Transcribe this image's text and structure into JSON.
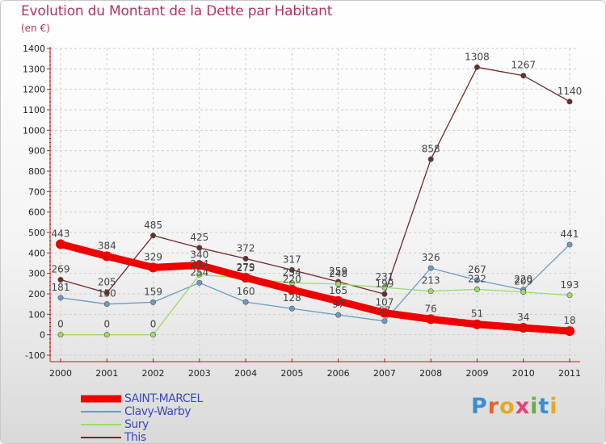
{
  "title": "Evolution du Montant de la Dette par Habitant",
  "unit": "(en €)",
  "brand": {
    "letters": [
      "P",
      "r",
      "o",
      "x",
      "i",
      "t",
      "i"
    ],
    "colors": [
      "#3a8ed0",
      "#e0662a",
      "#e6a826",
      "#e83f7a",
      "#62b245",
      "#3a8ed0",
      "#e6a826"
    ]
  },
  "chart_data": {
    "type": "line",
    "categories": [
      "2000",
      "2001",
      "2002",
      "2003",
      "2004",
      "2005",
      "2006",
      "2007",
      "2008",
      "2009",
      "2010",
      "2011"
    ],
    "ylim": [
      -100,
      1400
    ],
    "yticks": [
      "-100",
      "0",
      "100",
      "200",
      "300",
      "400",
      "500",
      "600",
      "700",
      "800",
      "900",
      "1000",
      "1100",
      "1200",
      "1300",
      "1400"
    ],
    "grid": true,
    "legend_position": "bottom-left",
    "series": [
      {
        "name": "SAINT-MARCEL",
        "color": "#ee0000",
        "values": [
          443,
          384,
          329,
          340,
          279,
          220,
          165,
          107,
          76,
          51,
          34,
          18
        ],
        "labels": [
          "443",
          "384",
          "329",
          "340",
          "279",
          "220",
          "165",
          "107",
          "76",
          "51",
          "34",
          "18"
        ]
      },
      {
        "name": "Clavy-Warby",
        "color": "#6a9bc8",
        "values": [
          181,
          150,
          159,
          254,
          160,
          128,
          97,
          67,
          326,
          267,
          220,
          441
        ],
        "labels": [
          "181",
          "150",
          "159",
          "254",
          "160",
          "128",
          "97",
          "67",
          "326",
          "267",
          "220",
          "441"
        ]
      },
      {
        "name": "Sury",
        "color": "#99dd66",
        "values": [
          0,
          0,
          0,
          294,
          275,
          254,
          248,
          231,
          213,
          222,
          209,
          193
        ],
        "labels": [
          "0",
          "0",
          "0",
          "294",
          "275",
          "254",
          "248",
          "231",
          "213",
          "222",
          "209",
          "193"
        ]
      },
      {
        "name": "This",
        "color": "#6f2a2a",
        "values": [
          269,
          205,
          485,
          425,
          372,
          317,
          259,
          199,
          858,
          1308,
          1267,
          1140
        ],
        "labels": [
          "269",
          "205",
          "485",
          "425",
          "372",
          "317",
          "259",
          "199",
          "858",
          "1308",
          "1267",
          "1140"
        ]
      }
    ]
  }
}
